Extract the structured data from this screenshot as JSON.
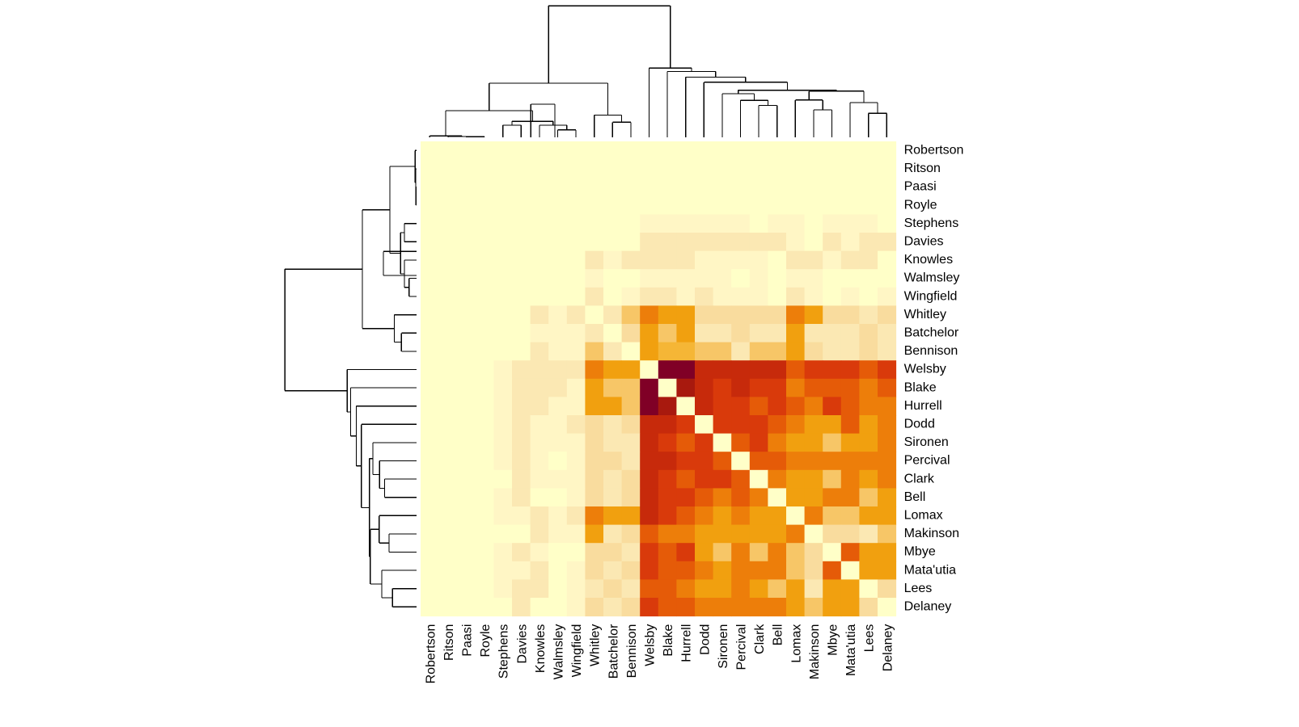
{
  "chart_data": {
    "type": "heatmap",
    "title": "",
    "xlabel": "",
    "ylabel": "",
    "colormap": "heat",
    "row_labels": [
      "Robertson",
      "Ritson",
      "Paasi",
      "Royle",
      "Stephens",
      "Davies",
      "Knowles",
      "Walmsley",
      "Wingfield",
      "Whitley",
      "Batchelor",
      "Bennison",
      "Welsby",
      "Blake",
      "Hurrell",
      "Dodd",
      "Sironen",
      "Percival",
      "Clark",
      "Bell",
      "Lomax",
      "Makinson",
      "Mbye",
      "Mata'utia",
      "Lees",
      "Delaney"
    ],
    "col_labels": [
      "Robertson",
      "Ritson",
      "Paasi",
      "Royle",
      "Stephens",
      "Davies",
      "Knowles",
      "Walmsley",
      "Wingfield",
      "Whitley",
      "Batchelor",
      "Bennison",
      "Welsby",
      "Blake",
      "Hurrell",
      "Dodd",
      "Sironen",
      "Percival",
      "Clark",
      "Bell",
      "Lomax",
      "Makinson",
      "Mbye",
      "Mata'utia",
      "Lees",
      "Delaney"
    ],
    "level_scale": "0 = palest (#FFFFC8) ... 12 = darkest (#800026)",
    "values": [
      [
        0,
        0,
        0,
        0,
        0,
        0,
        0,
        0,
        0,
        0,
        0,
        0,
        0,
        0,
        0,
        0,
        0,
        0,
        0,
        0,
        0,
        0,
        0,
        0,
        0,
        0
      ],
      [
        0,
        0,
        0,
        0,
        0,
        0,
        0,
        0,
        0,
        0,
        0,
        0,
        0,
        0,
        0,
        0,
        0,
        0,
        0,
        0,
        0,
        0,
        0,
        0,
        0,
        0
      ],
      [
        0,
        0,
        0,
        0,
        0,
        0,
        0,
        0,
        0,
        0,
        0,
        0,
        0,
        0,
        0,
        0,
        0,
        0,
        0,
        0,
        0,
        0,
        0,
        0,
        0,
        0
      ],
      [
        0,
        0,
        0,
        0,
        0,
        0,
        0,
        0,
        0,
        0,
        0,
        0,
        0,
        0,
        0,
        0,
        0,
        0,
        0,
        0,
        0,
        0,
        0,
        0,
        0,
        0
      ],
      [
        0,
        0,
        0,
        0,
        0,
        0,
        0,
        0,
        0,
        0,
        0,
        0,
        1,
        1,
        1,
        1,
        1,
        1,
        0,
        1,
        1,
        0,
        1,
        1,
        1,
        0
      ],
      [
        0,
        0,
        0,
        0,
        0,
        0,
        0,
        0,
        0,
        0,
        0,
        0,
        2,
        2,
        2,
        2,
        2,
        2,
        2,
        2,
        1,
        0,
        2,
        1,
        2,
        2
      ],
      [
        0,
        0,
        0,
        0,
        0,
        0,
        0,
        0,
        0,
        2,
        1,
        2,
        2,
        2,
        2,
        1,
        1,
        1,
        1,
        0,
        2,
        2,
        1,
        2,
        2,
        0
      ],
      [
        0,
        0,
        0,
        0,
        0,
        0,
        0,
        0,
        0,
        1,
        0,
        0,
        1,
        1,
        1,
        1,
        1,
        0,
        1,
        0,
        1,
        1,
        0,
        0,
        0,
        0
      ],
      [
        0,
        0,
        0,
        0,
        0,
        0,
        0,
        0,
        0,
        2,
        0,
        1,
        2,
        2,
        1,
        2,
        1,
        1,
        1,
        0,
        2,
        1,
        0,
        1,
        0,
        1
      ],
      [
        0,
        0,
        0,
        0,
        0,
        0,
        2,
        1,
        2,
        0,
        2,
        4,
        7,
        6,
        6,
        3,
        3,
        3,
        3,
        3,
        7,
        6,
        3,
        3,
        2,
        3
      ],
      [
        0,
        0,
        0,
        0,
        0,
        0,
        1,
        1,
        1,
        2,
        0,
        3,
        6,
        4,
        6,
        2,
        2,
        3,
        2,
        2,
        6,
        2,
        2,
        2,
        3,
        2
      ],
      [
        0,
        0,
        0,
        0,
        0,
        0,
        2,
        1,
        1,
        4,
        2,
        0,
        6,
        5,
        5,
        4,
        4,
        2,
        4,
        4,
        6,
        3,
        2,
        2,
        3,
        2
      ],
      [
        0,
        0,
        0,
        0,
        1,
        2,
        2,
        2,
        2,
        7,
        6,
        6,
        0,
        12,
        12,
        10,
        10,
        10,
        10,
        10,
        8,
        9,
        9,
        9,
        8,
        9
      ],
      [
        0,
        0,
        0,
        0,
        1,
        2,
        2,
        2,
        1,
        6,
        4,
        4,
        12,
        0,
        11,
        10,
        9,
        10,
        9,
        9,
        7,
        8,
        8,
        8,
        7,
        8
      ],
      [
        0,
        0,
        0,
        0,
        1,
        2,
        2,
        1,
        1,
        6,
        6,
        4,
        12,
        11,
        0,
        10,
        9,
        9,
        8,
        9,
        8,
        7,
        9,
        8,
        7,
        7
      ],
      [
        0,
        0,
        0,
        0,
        1,
        2,
        1,
        1,
        2,
        3,
        2,
        3,
        10,
        10,
        9,
        0,
        9,
        9,
        9,
        8,
        7,
        6,
        6,
        8,
        6,
        7
      ],
      [
        0,
        0,
        0,
        0,
        1,
        2,
        1,
        1,
        1,
        3,
        2,
        2,
        10,
        9,
        8,
        9,
        0,
        8,
        9,
        7,
        6,
        6,
        4,
        6,
        6,
        7
      ],
      [
        0,
        0,
        0,
        0,
        1,
        2,
        1,
        0,
        1,
        3,
        3,
        2,
        10,
        10,
        9,
        9,
        8,
        0,
        8,
        8,
        7,
        7,
        7,
        7,
        7,
        7
      ],
      [
        0,
        0,
        0,
        0,
        0,
        2,
        1,
        1,
        1,
        3,
        2,
        3,
        10,
        9,
        8,
        9,
        9,
        8,
        0,
        7,
        6,
        6,
        4,
        7,
        6,
        7
      ],
      [
        0,
        0,
        0,
        0,
        1,
        2,
        0,
        0,
        1,
        3,
        2,
        3,
        10,
        9,
        9,
        8,
        7,
        8,
        7,
        0,
        6,
        6,
        7,
        7,
        4,
        6
      ],
      [
        0,
        0,
        0,
        0,
        1,
        1,
        2,
        1,
        2,
        7,
        6,
        6,
        10,
        9,
        8,
        7,
        6,
        7,
        6,
        6,
        0,
        7,
        4,
        4,
        6,
        6
      ],
      [
        0,
        0,
        0,
        0,
        0,
        0,
        2,
        1,
        1,
        6,
        2,
        3,
        8,
        7,
        7,
        6,
        6,
        6,
        6,
        6,
        7,
        0,
        3,
        3,
        2,
        4
      ],
      [
        0,
        0,
        0,
        0,
        1,
        2,
        1,
        0,
        0,
        3,
        3,
        2,
        9,
        8,
        9,
        6,
        4,
        7,
        4,
        7,
        4,
        3,
        0,
        8,
        6,
        6
      ],
      [
        0,
        0,
        0,
        0,
        1,
        1,
        2,
        0,
        1,
        3,
        2,
        3,
        9,
        8,
        8,
        7,
        6,
        7,
        7,
        7,
        4,
        3,
        8,
        0,
        6,
        6
      ],
      [
        0,
        0,
        0,
        0,
        1,
        2,
        2,
        0,
        1,
        2,
        3,
        2,
        8,
        8,
        7,
        6,
        6,
        7,
        6,
        4,
        6,
        2,
        6,
        6,
        0,
        3
      ],
      [
        0,
        0,
        0,
        0,
        0,
        2,
        0,
        0,
        1,
        3,
        2,
        3,
        9,
        8,
        8,
        7,
        7,
        7,
        7,
        7,
        6,
        4,
        6,
        6,
        3,
        0
      ]
    ],
    "level_colors": [
      "#FFFFC8",
      "#FFF6C5",
      "#FBE8B3",
      "#F9DC9E",
      "#F7C667",
      "#F5B636",
      "#F1A00F",
      "#ED7E0A",
      "#E55B08",
      "#D93A0B",
      "#C72A0B",
      "#A8190E",
      "#800026"
    ],
    "col_dendrogram": [
      [
        6.84,
        1.87,
        5.53,
        1.87
      ],
      [
        2,
        0.03,
        3,
        0.03
      ],
      [
        1,
        0.05,
        2.5,
        0.05
      ],
      [
        0,
        0.08,
        1.75,
        0.08
      ],
      [
        7,
        0.42,
        8,
        0.42
      ],
      [
        6,
        0.68,
        7.5,
        0.68
      ],
      [
        4,
        0.68,
        5,
        0.68
      ],
      [
        4.5,
        0.9,
        6.75,
        0.9
      ],
      [
        0.875,
        1.5,
        5.625,
        1.5
      ],
      [
        10,
        0.85,
        11,
        0.85
      ],
      [
        9,
        1.25,
        10.5,
        1.25
      ],
      [
        3.25,
        3.05,
        9.75,
        3.05
      ],
      [
        18,
        1.8,
        19,
        1.8
      ],
      [
        17,
        2.08,
        18.5,
        2.08
      ],
      [
        16,
        2.45,
        17.75,
        2.45
      ],
      [
        21,
        1.55,
        22,
        1.55
      ],
      [
        20,
        2.1,
        21.5,
        2.1
      ],
      [
        24,
        1.35,
        25,
        1.35
      ],
      [
        23,
        1.95,
        24.5,
        1.95
      ],
      [
        20.75,
        2.6,
        23.75,
        2.6
      ],
      [
        16.875,
        2.65,
        22.25,
        2.65
      ],
      [
        15,
        3.1,
        19.5625,
        3.1
      ],
      [
        14,
        3.38,
        17.28,
        3.38
      ],
      [
        13,
        3.7,
        15.64,
        3.7
      ],
      [
        12,
        3.9,
        14.32,
        3.9
      ],
      [
        6.5,
        7.4,
        13.16,
        7.4
      ]
    ]
  }
}
